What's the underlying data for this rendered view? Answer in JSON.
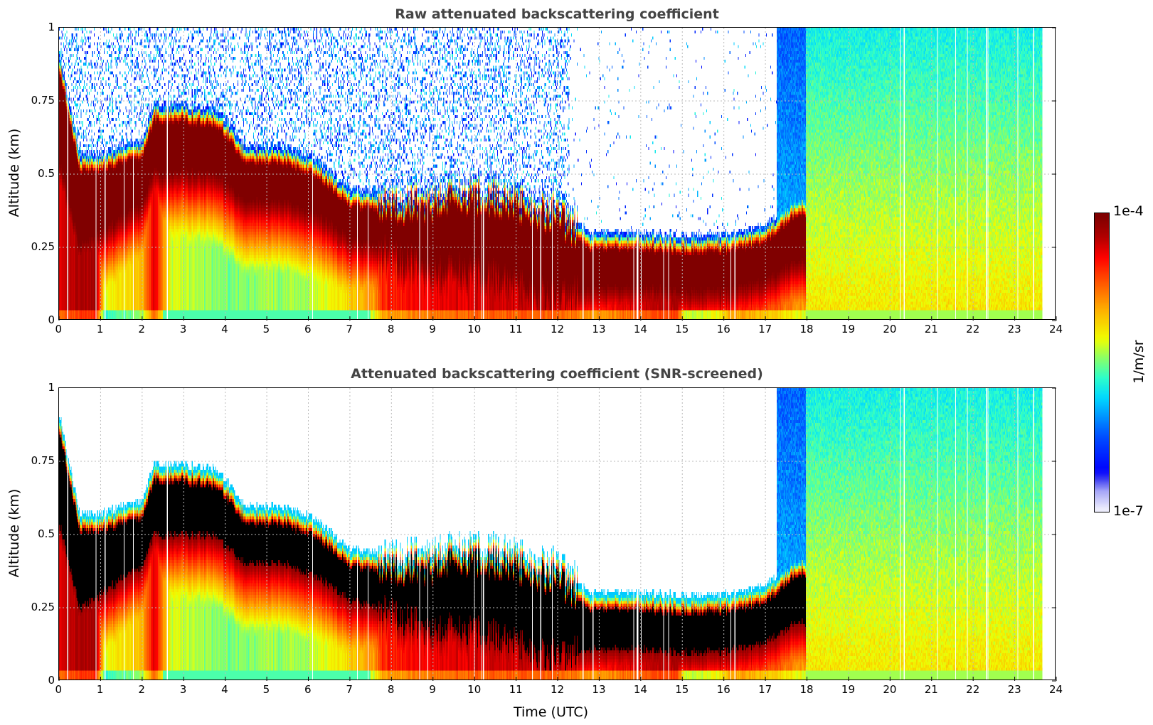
{
  "chart_data": {
    "type": "heatmap",
    "panels": [
      {
        "title": "Raw attenuated backscattering coefficient",
        "screened": false
      },
      {
        "title": "Attenuated backscattering coefficient (SNR-screened)",
        "screened": true
      }
    ],
    "xlabel": "Time (UTC)",
    "ylabel": "Altitude (km)",
    "xlim": [
      0,
      24
    ],
    "ylim": [
      0,
      1
    ],
    "xticks": [
      "0",
      "1",
      "2",
      "3",
      "4",
      "5",
      "6",
      "7",
      "8",
      "9",
      "10",
      "11",
      "12",
      "13",
      "14",
      "15",
      "16",
      "17",
      "18",
      "19",
      "20",
      "21",
      "22",
      "23",
      "24"
    ],
    "yticks": [
      "0",
      "0.25",
      "0.5",
      "0.75",
      "1"
    ],
    "grid": true,
    "colorbar": {
      "label": "1/m/sr",
      "max_label": "1e-4",
      "min_label": "1e-7",
      "log_range": [
        -7,
        -4
      ],
      "colormap": "jet"
    },
    "layer_top_km": {
      "t": [
        0,
        0.5,
        1,
        2,
        2.3,
        3,
        3.8,
        4.5,
        5.5,
        6.2,
        7,
        8,
        9,
        10,
        11,
        12,
        12.8,
        14,
        15,
        16,
        17,
        17.8
      ],
      "z": [
        0.9,
        0.55,
        0.55,
        0.6,
        0.72,
        0.72,
        0.7,
        0.58,
        0.57,
        0.53,
        0.43,
        0.4,
        0.42,
        0.45,
        0.42,
        0.38,
        0.28,
        0.28,
        0.27,
        0.27,
        0.3,
        0.4
      ]
    },
    "data_end_hour": 23.7
  }
}
